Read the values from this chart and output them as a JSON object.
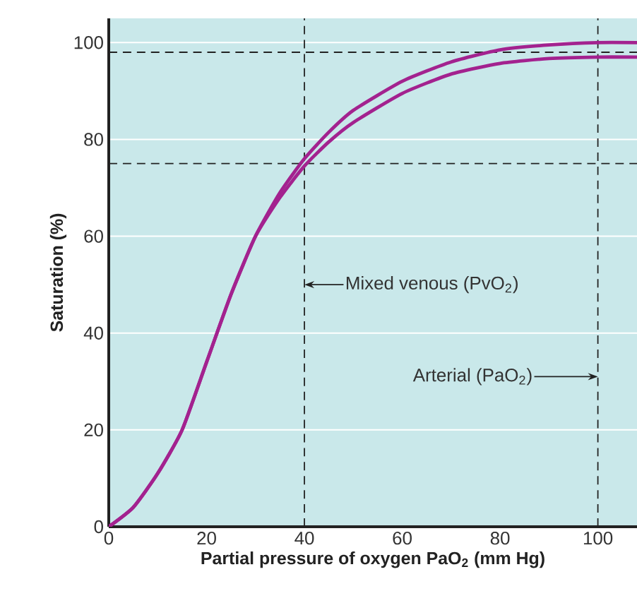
{
  "chart_data": {
    "type": "line",
    "xlabel": "Partial pressure of oxygen PaO$_{2}$ (mm Hg)",
    "ylabel": "Saturation (%)",
    "series": [
      {
        "color": "#a3228f",
        "x": [
          0,
          5,
          10,
          15,
          20,
          25,
          30,
          35,
          40,
          45,
          50,
          60,
          70,
          80,
          90,
          100,
          108
        ],
        "values": [
          0,
          4,
          11,
          20,
          34,
          48,
          60,
          69,
          76,
          81.5,
          86,
          92,
          96,
          98.5,
          99.5,
          100,
          100
        ]
      },
      {
        "color": "#a3228f",
        "x": [
          0,
          5,
          10,
          15,
          20,
          25,
          30,
          35,
          40,
          45,
          50,
          60,
          70,
          80,
          90,
          100,
          108
        ],
        "values": [
          0,
          4,
          11,
          20,
          34,
          48,
          60,
          68,
          74.5,
          79.5,
          83.5,
          89.5,
          93.5,
          95.7,
          96.7,
          97,
          97
        ]
      }
    ],
    "xlim": [
      0,
      108
    ],
    "ylim": [
      0,
      105
    ],
    "xticks": [
      0,
      20,
      40,
      60,
      80,
      100
    ],
    "yticks": [
      0,
      20,
      40,
      60,
      80,
      100
    ],
    "grid": "y",
    "marker": "none",
    "line_style": "solid",
    "ref_lines": [
      {
        "axis": "y",
        "value": 98,
        "color": "#222222",
        "line_style": "dashed"
      },
      {
        "axis": "y",
        "value": 75,
        "color": "#222222",
        "line_style": "dashed"
      },
      {
        "axis": "x",
        "value": 40,
        "color": "#222222",
        "line_style": "dashed"
      },
      {
        "axis": "x",
        "value": 100,
        "color": "#222222",
        "line_style": "dashed"
      }
    ],
    "annotations": [
      {
        "text": "Mixed venous (PvO$_{2}$)",
        "x": 40,
        "y": 50
      },
      {
        "text": "Arterial (PaO$_{2}$)",
        "x": 100,
        "y": 31
      }
    ]
  }
}
